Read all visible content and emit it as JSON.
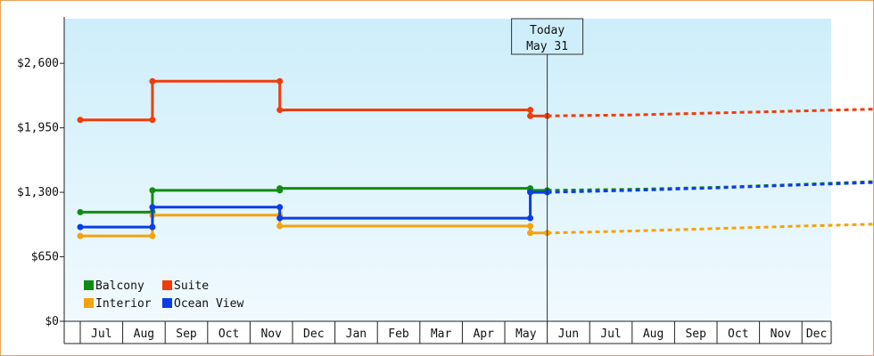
{
  "chart_data": {
    "type": "line",
    "title": "",
    "xlabel": "",
    "ylabel": "",
    "ylim": [
      0,
      3050
    ],
    "y_ticks": [
      0,
      650,
      1300,
      1950,
      2600
    ],
    "y_tick_labels": [
      "$0",
      "$650",
      "$1,300",
      "$1,950",
      "$2,600"
    ],
    "month_labels": [
      "Jul",
      "Aug",
      "Sep",
      "Oct",
      "Nov",
      "Dec",
      "Jan",
      "Feb",
      "Mar",
      "Apr",
      "May",
      "Jun",
      "Jul",
      "Aug",
      "Sep",
      "Oct",
      "Nov",
      "Dec"
    ],
    "today": {
      "label": "Today",
      "date": "May 31",
      "x": 11.0
    },
    "grid": false,
    "legend_position": "bottom-left",
    "series": [
      {
        "name": "Balcony",
        "color": "#118c11",
        "values": [
          [
            0,
            1100
          ],
          [
            1.7,
            1100
          ],
          [
            1.7,
            1320
          ],
          [
            4.7,
            1320
          ],
          [
            4.7,
            1340
          ],
          [
            10.6,
            1340
          ],
          [
            10.6,
            1320
          ],
          [
            11.0,
            1320
          ]
        ],
        "forecast": [
          [
            11.0,
            1320
          ],
          [
            13.0,
            1330
          ],
          [
            15.0,
            1350
          ],
          [
            17.0,
            1380
          ],
          [
            18.8,
            1410
          ]
        ]
      },
      {
        "name": "Suite",
        "color": "#f03c0a",
        "values": [
          [
            0,
            2030
          ],
          [
            1.7,
            2030
          ],
          [
            1.7,
            2420
          ],
          [
            4.7,
            2420
          ],
          [
            4.7,
            2130
          ],
          [
            10.6,
            2130
          ],
          [
            10.6,
            2070
          ],
          [
            11.0,
            2070
          ]
        ],
        "forecast": [
          [
            11.0,
            2070
          ],
          [
            13.0,
            2080
          ],
          [
            15.0,
            2100
          ],
          [
            17.0,
            2120
          ],
          [
            18.8,
            2140
          ]
        ]
      },
      {
        "name": "Interior",
        "color": "#f5a20c",
        "values": [
          [
            0,
            860
          ],
          [
            1.7,
            860
          ],
          [
            1.7,
            1070
          ],
          [
            4.7,
            1070
          ],
          [
            4.7,
            960
          ],
          [
            10.6,
            960
          ],
          [
            10.6,
            890
          ],
          [
            11.0,
            890
          ]
        ],
        "forecast": [
          [
            11.0,
            890
          ],
          [
            13.0,
            910
          ],
          [
            15.0,
            935
          ],
          [
            17.0,
            960
          ],
          [
            18.8,
            980
          ]
        ]
      },
      {
        "name": "Ocean View",
        "color": "#0b3de6",
        "values": [
          [
            0,
            950
          ],
          [
            1.7,
            950
          ],
          [
            1.7,
            1150
          ],
          [
            4.7,
            1150
          ],
          [
            4.7,
            1040
          ],
          [
            10.6,
            1040
          ],
          [
            10.6,
            1300
          ],
          [
            11.0,
            1300
          ]
        ],
        "forecast": [
          [
            11.0,
            1300
          ],
          [
            13.0,
            1320
          ],
          [
            15.0,
            1345
          ],
          [
            17.0,
            1375
          ],
          [
            18.8,
            1400
          ]
        ]
      }
    ],
    "markers": [
      {
        "series": 0,
        "points": [
          [
            0,
            1100
          ],
          [
            1.7,
            1100
          ],
          [
            1.7,
            1320
          ],
          [
            4.7,
            1320
          ],
          [
            4.7,
            1340
          ],
          [
            10.6,
            1340
          ],
          [
            10.6,
            1320
          ],
          [
            11.0,
            1320
          ]
        ]
      },
      {
        "series": 1,
        "points": [
          [
            0,
            2030
          ],
          [
            1.7,
            2030
          ],
          [
            1.7,
            2420
          ],
          [
            4.7,
            2420
          ],
          [
            4.7,
            2130
          ],
          [
            10.6,
            2130
          ],
          [
            10.6,
            2070
          ],
          [
            11.0,
            2070
          ]
        ]
      },
      {
        "series": 2,
        "points": [
          [
            0,
            860
          ],
          [
            1.7,
            860
          ],
          [
            1.7,
            1070
          ],
          [
            4.7,
            1070
          ],
          [
            4.7,
            960
          ],
          [
            10.6,
            960
          ],
          [
            10.6,
            890
          ],
          [
            11.0,
            890
          ]
        ]
      },
      {
        "series": 3,
        "points": [
          [
            0,
            950
          ],
          [
            1.7,
            950
          ],
          [
            1.7,
            1150
          ],
          [
            4.7,
            1150
          ],
          [
            4.7,
            1040
          ],
          [
            10.6,
            1040
          ],
          [
            10.6,
            1300
          ],
          [
            11.0,
            1300
          ]
        ]
      }
    ]
  }
}
